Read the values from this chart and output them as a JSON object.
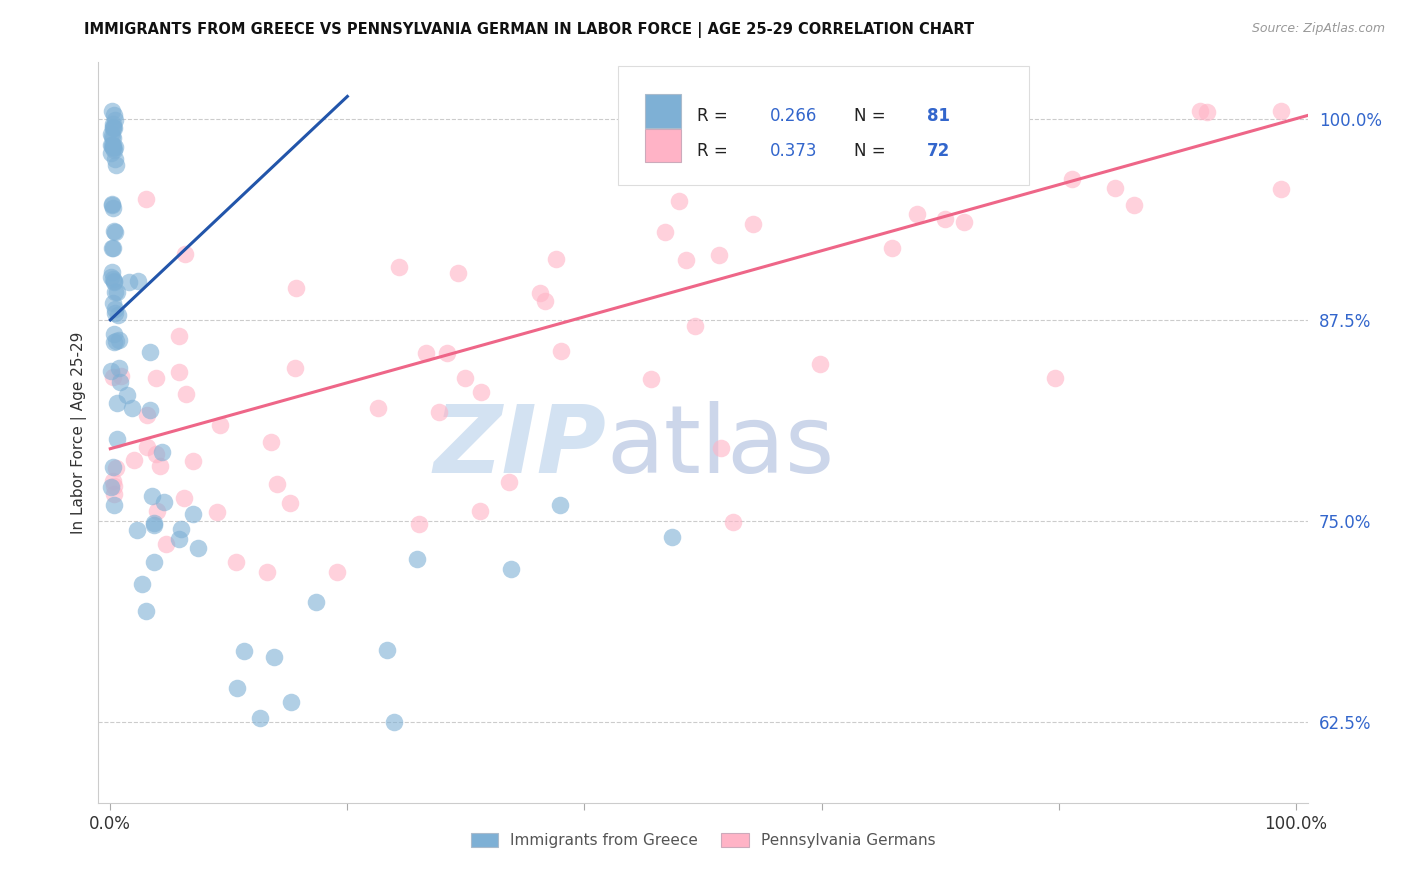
{
  "title": "IMMIGRANTS FROM GREECE VS PENNSYLVANIA GERMAN IN LABOR FORCE | AGE 25-29 CORRELATION CHART",
  "source": "Source: ZipAtlas.com",
  "ylabel": "In Labor Force | Age 25-29",
  "xlim": [
    -0.01,
    1.01
  ],
  "ylim": [
    0.575,
    1.035
  ],
  "yticks": [
    0.625,
    0.75,
    0.875,
    1.0
  ],
  "ytick_labels": [
    "62.5%",
    "75.0%",
    "87.5%",
    "100.0%"
  ],
  "xticks": [
    0.0,
    0.2,
    0.4,
    0.6,
    0.8,
    1.0
  ],
  "xtick_labels": [
    "0.0%",
    "",
    "",
    "",
    "",
    "100.0%"
  ],
  "blue_scatter_color": "#7EB0D5",
  "pink_scatter_color": "#FFB3C6",
  "blue_line_color": "#2255AA",
  "pink_line_color": "#EE6688",
  "R_blue": 0.266,
  "N_blue": 81,
  "R_pink": 0.373,
  "N_pink": 72,
  "legend_label_blue": "Immigrants from Greece",
  "legend_label_pink": "Pennsylvania Germans",
  "ytick_color": "#3366CC",
  "xtick_color": "#333333",
  "grid_color": "#CCCCCC",
  "title_color": "#111111",
  "source_color": "#999999",
  "ylabel_color": "#333333",
  "watermark_zip_color": "#CCDDF0",
  "watermark_atlas_color": "#AABBDD"
}
